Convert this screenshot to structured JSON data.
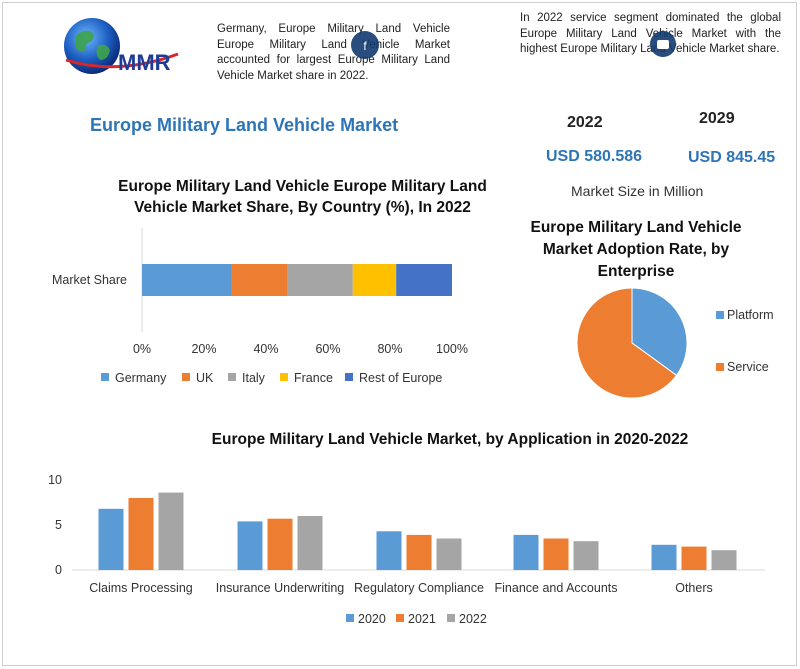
{
  "logo": {
    "text": "MMR"
  },
  "intro_left": "Germany, Europe Military Land Vehicle Europe Military Land Vehicle Market accounted for largest Europe Military Land Vehicle Market share in 2022.",
  "intro_right": "In 2022 service segment dominated the global Europe Military Land Vehicle Market with the highest Europe Military Land Vehicle Market share.",
  "main_title": "Europe Military Land Vehicle Market",
  "market": {
    "year_1": "2022",
    "year_2": "2029",
    "value_1": "USD 580.586",
    "value_2": "USD 845.45",
    "caption": "Market Size in Million"
  },
  "colors": {
    "blue": "#5b9bd5",
    "orange": "#ed7d31",
    "gray": "#a5a5a5",
    "gold": "#ffc000",
    "dark_blue": "#4472c4",
    "accent": "#2e75b6"
  },
  "chart_data": [
    {
      "type": "bar",
      "orientation": "horizontal-stacked",
      "title": "Europe Military Land Vehicle Europe Military Land Vehicle Market Share, By Country (%), In 2022",
      "categories": [
        "Market Share"
      ],
      "series": [
        {
          "name": "Germany",
          "values": [
            29
          ]
        },
        {
          "name": "UK",
          "values": [
            18
          ]
        },
        {
          "name": "Italy",
          "values": [
            21
          ]
        },
        {
          "name": "France",
          "values": [
            14
          ]
        },
        {
          "name": "Rest of Europe",
          "values": [
            18
          ]
        }
      ],
      "xticks": [
        "0%",
        "20%",
        "40%",
        "60%",
        "80%",
        "100%"
      ],
      "xlim": [
        0,
        100
      ],
      "legend": "bottom"
    },
    {
      "type": "pie",
      "title": "Europe Military Land Vehicle Market Adoption Rate, by Enterprise",
      "labels": [
        "Platform",
        "Service"
      ],
      "values": [
        35,
        65
      ],
      "legend": "right"
    },
    {
      "type": "bar",
      "title": "Europe Military Land Vehicle Market, by Application in 2020-2022",
      "categories": [
        "Claims Processing",
        "Insurance Underwriting",
        "Regulatory Compliance",
        "Finance and Accounts",
        "Others"
      ],
      "series": [
        {
          "name": "2020",
          "values": [
            6.8,
            5.4,
            4.3,
            3.9,
            2.8
          ]
        },
        {
          "name": "2021",
          "values": [
            8.0,
            5.7,
            3.9,
            3.5,
            2.6
          ]
        },
        {
          "name": "2022",
          "values": [
            8.6,
            6.0,
            3.5,
            3.2,
            2.2
          ]
        }
      ],
      "yticks": [
        "0",
        "5",
        "10"
      ],
      "ylim": [
        0,
        10
      ],
      "legend": "bottom",
      "grid": false
    }
  ]
}
